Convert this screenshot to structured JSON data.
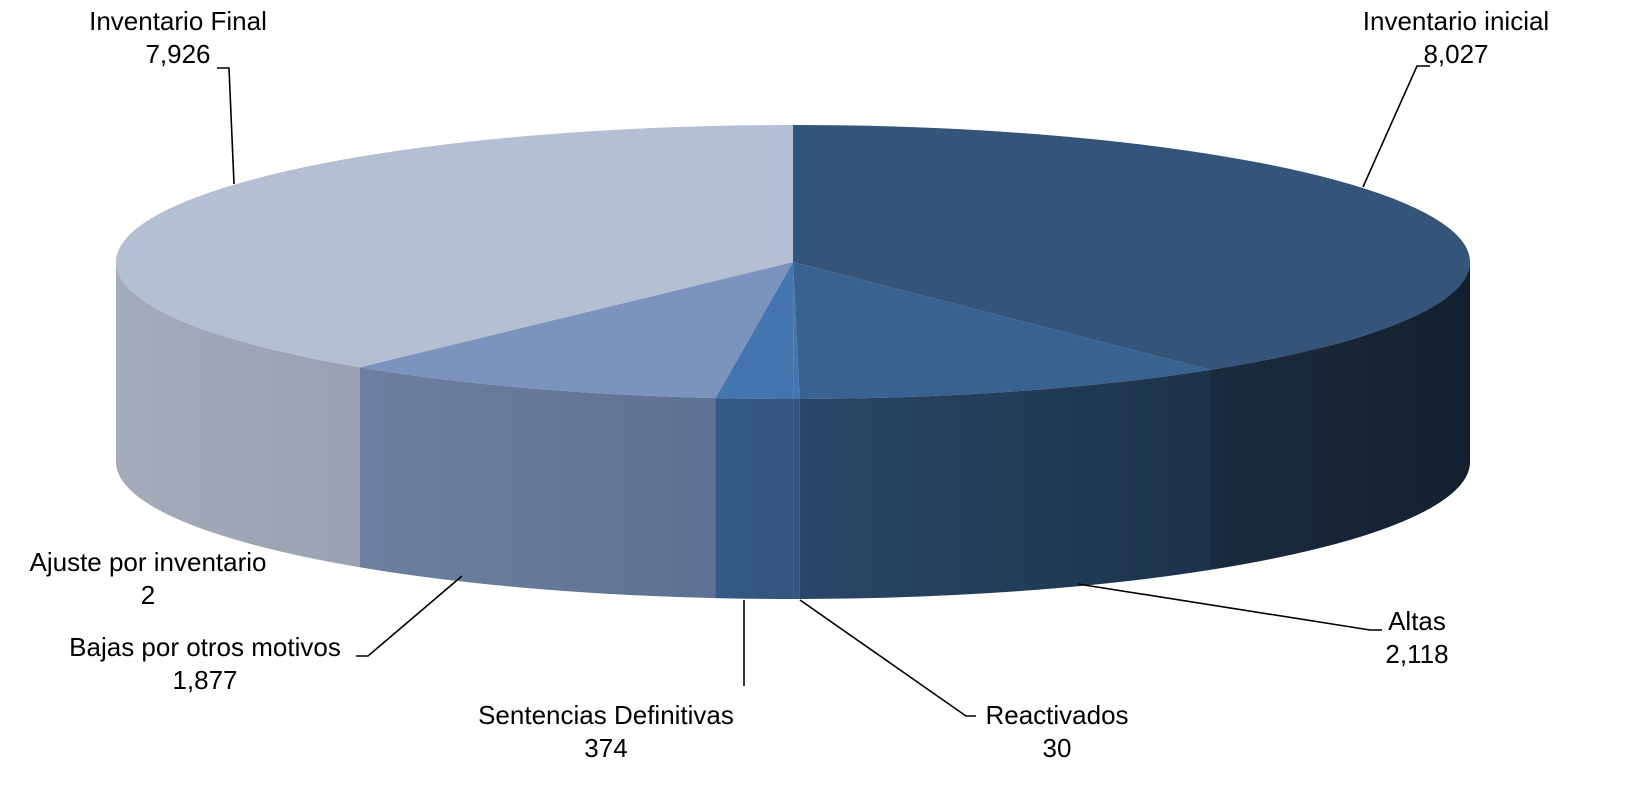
{
  "chart_data": {
    "type": "pie",
    "style": "3d",
    "title": "",
    "categories": [
      "Inventario inicial",
      "Altas",
      "Reactivados",
      "Sentencias Definitivas",
      "Bajas por otros motivos",
      "Ajuste por inventario",
      "Inventario Final"
    ],
    "values": [
      8027,
      2118,
      30,
      374,
      1877,
      2,
      7926
    ],
    "value_labels": [
      "8,027",
      "2,118",
      "30",
      "374",
      "1,877",
      "2",
      "7,926"
    ],
    "colors": [
      "#34547a",
      "#386290",
      "#4575ae",
      "#4575ae",
      "#7b93bd",
      "#8aa0c6",
      "#b5bfd3"
    ],
    "legend": "none"
  }
}
